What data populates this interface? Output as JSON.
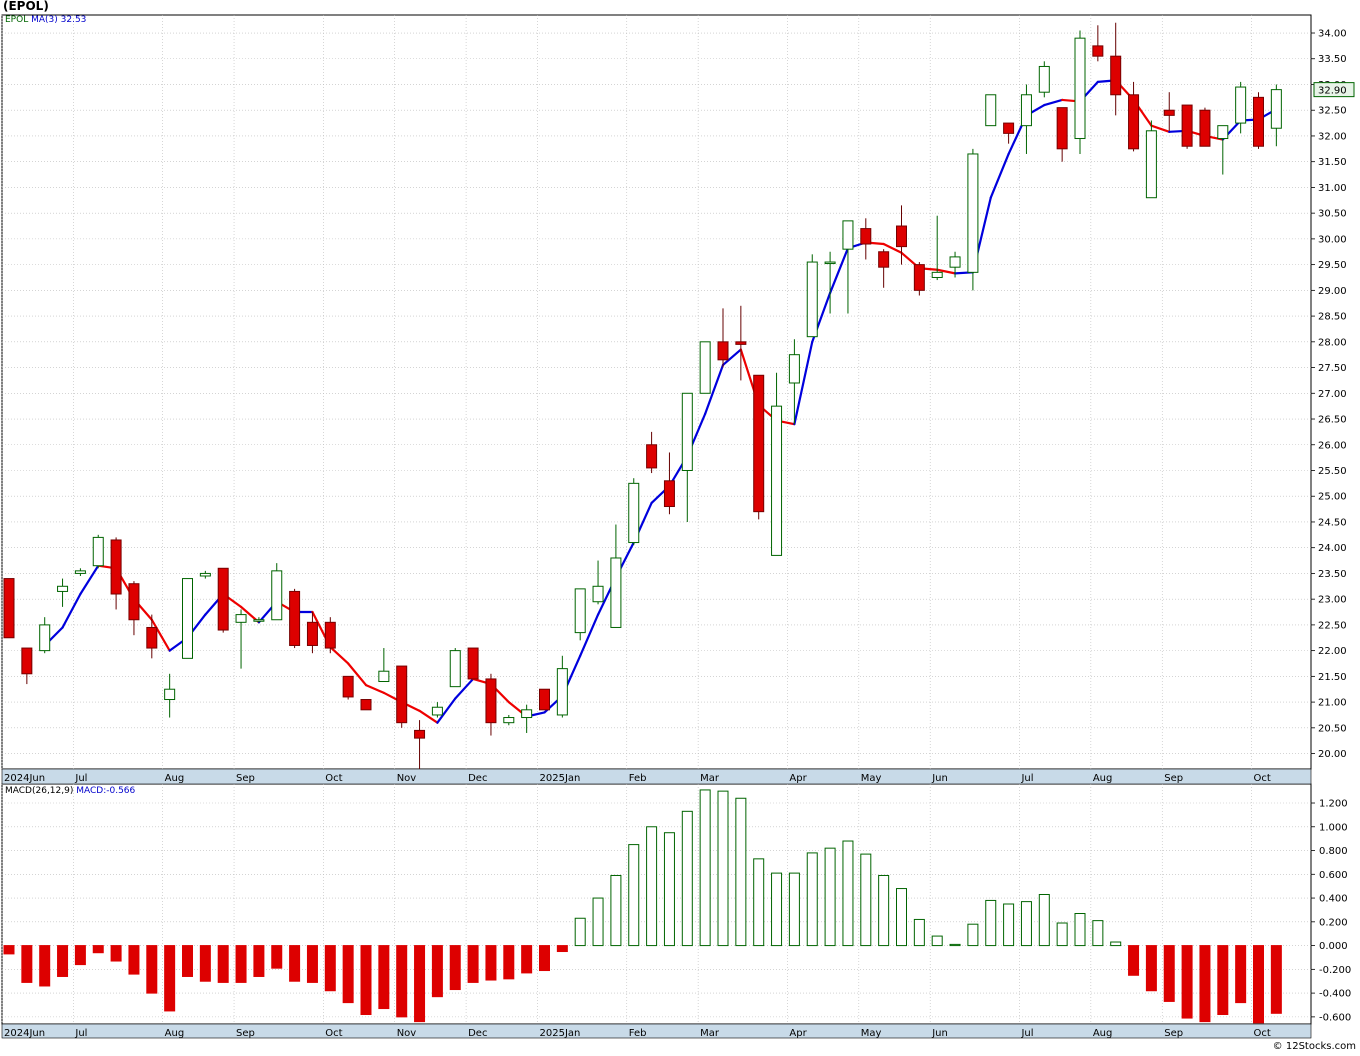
{
  "header": {
    "symbol_title": "(EPOL)",
    "symbol": "EPOL",
    "ma_label": "MA(3)",
    "ma_value": "32.53",
    "macd_label": "MACD(26,12,9)",
    "macd_value": "MACD:-0.566",
    "current_price": "32.90",
    "credit": "© 12Stocks.com"
  },
  "colors": {
    "up_candle": "#006400",
    "down_candle": "#dd0000",
    "ma_up": "#0000dd",
    "ma_down": "#ee0000",
    "grid": "#bbbbbb",
    "axis_band": "#c8dae8",
    "price_badge_bg": "#e8f4e8"
  },
  "chart_data": [
    {
      "type": "candlestick",
      "title": "(EPOL)",
      "frequency": "weekly",
      "ylim": [
        19.7,
        34.35
      ],
      "yticks": [
        "20.00",
        "20.50",
        "21.00",
        "21.50",
        "22.00",
        "22.50",
        "23.00",
        "23.50",
        "24.00",
        "24.50",
        "25.00",
        "25.50",
        "26.00",
        "26.50",
        "27.00",
        "27.50",
        "28.00",
        "28.50",
        "29.00",
        "29.50",
        "30.00",
        "30.50",
        "31.00",
        "31.50",
        "32.00",
        "32.50",
        "33.00",
        "33.50",
        "34.00"
      ],
      "x_labels": [
        "2024Jun",
        "Jul",
        "Aug",
        "Sep",
        "Oct",
        "Nov",
        "Dec",
        "2025Jan",
        "Feb",
        "Mar",
        "Apr",
        "May",
        "Jun",
        "Jul",
        "Aug",
        "Sep",
        "Oct"
      ],
      "x_label_weeks": [
        0,
        4,
        9,
        13,
        18,
        22,
        26,
        30,
        35,
        39,
        44,
        48,
        52,
        57,
        61,
        65,
        70
      ],
      "ohlc": [
        [
          23.4,
          23.4,
          22.25,
          22.25
        ],
        [
          22.05,
          22.05,
          21.35,
          21.55
        ],
        [
          22.0,
          22.65,
          21.95,
          22.5
        ],
        [
          23.15,
          23.4,
          22.85,
          23.25
        ],
        [
          23.5,
          23.6,
          23.45,
          23.55
        ],
        [
          23.65,
          24.25,
          23.6,
          24.2
        ],
        [
          24.15,
          24.2,
          22.8,
          23.1
        ],
        [
          23.3,
          23.35,
          22.3,
          22.6
        ],
        [
          22.45,
          22.7,
          21.85,
          22.05
        ],
        [
          21.05,
          21.55,
          20.7,
          21.25
        ],
        [
          21.85,
          23.4,
          21.85,
          23.4
        ],
        [
          23.45,
          23.55,
          23.4,
          23.5
        ],
        [
          23.6,
          23.6,
          22.35,
          22.4
        ],
        [
          22.55,
          22.8,
          21.65,
          22.7
        ],
        [
          22.6,
          22.65,
          22.55,
          22.6
        ],
        [
          22.6,
          23.7,
          22.6,
          23.55
        ],
        [
          23.15,
          23.2,
          22.05,
          22.1
        ],
        [
          22.55,
          22.75,
          21.95,
          22.1
        ],
        [
          22.55,
          22.65,
          21.95,
          22.05
        ],
        [
          21.5,
          21.5,
          21.05,
          21.1
        ],
        [
          21.05,
          21.05,
          20.85,
          20.85
        ],
        [
          21.4,
          22.05,
          21.4,
          21.6
        ],
        [
          21.7,
          21.7,
          20.5,
          20.6
        ],
        [
          20.45,
          20.65,
          19.7,
          20.3
        ],
        [
          20.75,
          21.0,
          20.7,
          20.9
        ],
        [
          21.3,
          22.05,
          21.3,
          22.0
        ],
        [
          22.05,
          22.05,
          21.45,
          21.45
        ],
        [
          21.45,
          21.55,
          20.35,
          20.6
        ],
        [
          20.6,
          20.75,
          20.55,
          20.7
        ],
        [
          20.7,
          20.95,
          20.4,
          20.85
        ],
        [
          21.25,
          21.25,
          20.85,
          20.85
        ],
        [
          20.75,
          21.9,
          20.7,
          21.65
        ],
        [
          22.35,
          23.2,
          22.2,
          23.2
        ],
        [
          22.95,
          23.75,
          22.9,
          23.25
        ],
        [
          22.45,
          24.45,
          22.45,
          23.8
        ],
        [
          24.1,
          25.35,
          24.05,
          25.25
        ],
        [
          26.0,
          26.25,
          25.45,
          25.55
        ],
        [
          25.3,
          25.85,
          24.65,
          24.8
        ],
        [
          25.5,
          27.0,
          24.5,
          27.0
        ],
        [
          27.0,
          28.0,
          27.0,
          28.0
        ],
        [
          28.0,
          28.65,
          27.5,
          27.65
        ],
        [
          28.0,
          28.7,
          27.25,
          27.95
        ],
        [
          27.35,
          27.35,
          24.55,
          24.7
        ],
        [
          23.85,
          27.4,
          23.85,
          26.75
        ],
        [
          27.2,
          28.05,
          26.4,
          27.75
        ],
        [
          28.1,
          29.7,
          28.1,
          29.55
        ],
        [
          29.55,
          29.75,
          28.55,
          29.55
        ],
        [
          29.8,
          30.35,
          28.55,
          30.35
        ],
        [
          30.2,
          30.4,
          29.6,
          29.9
        ],
        [
          29.75,
          29.8,
          29.05,
          29.45
        ],
        [
          30.25,
          30.65,
          29.5,
          29.85
        ],
        [
          29.5,
          29.55,
          28.9,
          29.0
        ],
        [
          29.25,
          30.45,
          29.2,
          29.35
        ],
        [
          29.45,
          29.75,
          29.25,
          29.65
        ],
        [
          29.35,
          31.75,
          29.0,
          31.65
        ],
        [
          32.2,
          32.8,
          32.2,
          32.8
        ],
        [
          32.25,
          32.25,
          31.85,
          32.05
        ],
        [
          32.2,
          33.0,
          31.65,
          32.8
        ],
        [
          32.85,
          33.45,
          32.75,
          33.35
        ],
        [
          32.55,
          32.55,
          31.5,
          31.75
        ],
        [
          31.95,
          34.05,
          31.65,
          33.9
        ],
        [
          33.75,
          34.15,
          33.45,
          33.55
        ],
        [
          33.55,
          34.2,
          32.4,
          32.8
        ],
        [
          32.8,
          33.05,
          31.7,
          31.75
        ],
        [
          30.8,
          32.3,
          30.8,
          32.1
        ],
        [
          32.5,
          32.85,
          32.1,
          32.4
        ],
        [
          32.6,
          32.6,
          31.75,
          31.8
        ],
        [
          32.5,
          32.55,
          31.8,
          31.8
        ],
        [
          31.95,
          32.2,
          31.25,
          32.2
        ],
        [
          32.25,
          33.05,
          32.05,
          32.95
        ],
        [
          32.75,
          32.85,
          31.75,
          31.8
        ],
        [
          32.15,
          33.0,
          31.8,
          32.9
        ]
      ],
      "ma3": [
        null,
        null,
        22.1,
        22.45,
        23.1,
        23.65,
        23.6,
        23.0,
        22.6,
        22.0,
        22.25,
        22.7,
        23.1,
        22.85,
        22.55,
        22.95,
        22.75,
        22.75,
        22.07,
        21.75,
        21.33,
        21.18,
        21.0,
        20.83,
        20.6,
        21.07,
        21.45,
        21.35,
        21.0,
        20.72,
        20.8,
        21.12,
        21.9,
        22.7,
        23.42,
        24.1,
        24.87,
        25.2,
        25.78,
        26.6,
        27.55,
        27.85,
        26.77,
        26.47,
        26.4,
        28.0,
        28.95,
        29.82,
        29.93,
        29.9,
        29.73,
        29.43,
        29.4,
        29.33,
        29.35,
        30.8,
        31.65,
        32.4,
        32.6,
        32.7,
        32.67,
        33.05,
        33.08,
        32.7,
        32.2,
        32.08,
        32.1,
        32.0,
        31.93,
        32.3,
        32.32,
        32.52
      ],
      "macd": [
        -0.07,
        -0.31,
        -0.34,
        -0.26,
        -0.16,
        -0.06,
        -0.13,
        -0.24,
        -0.4,
        -0.55,
        -0.26,
        -0.3,
        -0.31,
        -0.31,
        -0.26,
        -0.19,
        -0.3,
        -0.31,
        -0.38,
        -0.48,
        -0.58,
        -0.53,
        -0.6,
        -0.64,
        -0.43,
        -0.37,
        -0.31,
        -0.29,
        -0.28,
        -0.23,
        -0.21,
        -0.05,
        0.23,
        0.4,
        0.59,
        0.85,
        1.0,
        0.95,
        1.13,
        1.31,
        1.3,
        1.24,
        0.73,
        0.61,
        0.61,
        0.78,
        0.82,
        0.88,
        0.77,
        0.59,
        0.48,
        0.22,
        0.08,
        0.01,
        0.18,
        0.38,
        0.35,
        0.37,
        0.43,
        0.19,
        0.27,
        0.21,
        0.03,
        -0.25,
        -0.38,
        -0.47,
        -0.61,
        -0.64,
        -0.58,
        -0.48,
        -0.65,
        -0.57
      ],
      "macd_yticks": [
        "-0.600",
        "-0.400",
        "-0.200",
        "0.000",
        "0.200",
        "0.400",
        "0.600",
        "0.800",
        "1.000",
        "1.200"
      ],
      "macd_ylim": [
        -0.66,
        1.36
      ]
    }
  ]
}
